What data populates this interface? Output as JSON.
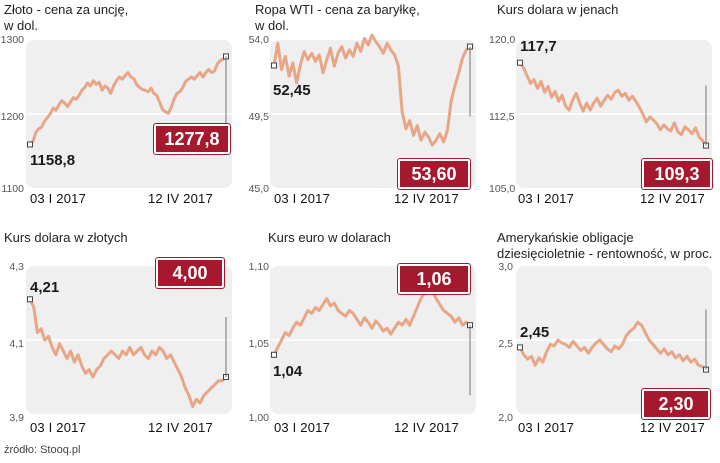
{
  "source": "źródło: Stooq.pl",
  "chart_data": [
    {
      "type": "line",
      "title": "Złoto - cena za uncję,\nw dol.",
      "ylim": [
        1100,
        1300
      ],
      "yticks": [
        "1300",
        "1200",
        "1100"
      ],
      "ytick_values": [
        1300,
        1200,
        1100
      ],
      "x_start": "03 I 2017",
      "x_end": "12 IV 2017",
      "start_label": "1158,8",
      "end_label": "1277,8",
      "series": [
        {
          "values": [
            1158.8,
            1163,
            1175,
            1180,
            1182,
            1190,
            1195,
            1200,
            1208,
            1205,
            1212,
            1218,
            1215,
            1210,
            1216,
            1222,
            1220,
            1225,
            1232,
            1236,
            1242,
            1238,
            1245,
            1240,
            1243,
            1232,
            1238,
            1235,
            1228,
            1238,
            1245,
            1250,
            1247,
            1252,
            1256,
            1250,
            1248,
            1240,
            1236,
            1233,
            1232,
            1230,
            1235,
            1228,
            1225,
            1216,
            1206,
            1203,
            1201,
            1209,
            1220,
            1228,
            1230,
            1236,
            1244,
            1247,
            1250,
            1247,
            1252,
            1256,
            1250,
            1256,
            1260,
            1256,
            1258,
            1268,
            1272,
            1274,
            1277.8
          ]
        }
      ]
    },
    {
      "type": "line",
      "title": "Ropa WTI - cena za baryłkę,\nw dol.",
      "ylim": [
        45,
        54
      ],
      "yticks": [
        "54,0",
        "49,5",
        "45,0"
      ],
      "ytick_values": [
        54,
        49.5,
        45
      ],
      "x_start": "03 I 2017",
      "x_end": "12 IV 2017",
      "start_label": "52,45",
      "end_label": "53,60",
      "series": [
        {
          "values": [
            52.45,
            53.8,
            52.2,
            53.0,
            51.8,
            52.6,
            51.4,
            52.5,
            53.3,
            52.8,
            53.2,
            52.7,
            53.1,
            52.0,
            52.8,
            53.5,
            52.4,
            53.2,
            53.6,
            52.9,
            53.4,
            53.0,
            53.8,
            53.3,
            54.1,
            53.7,
            54.3,
            53.9,
            53.6,
            53.2,
            53.8,
            53.4,
            53.1,
            52.4,
            49.6,
            48.6,
            49.1,
            48.2,
            48.8,
            47.9,
            48.4,
            48.1,
            47.6,
            47.9,
            48.3,
            47.8,
            48.5,
            50.3,
            51.2,
            52.0,
            52.9,
            53.4,
            53.6
          ]
        }
      ]
    },
    {
      "type": "line",
      "title": "Kurs dolara w jenach",
      "ylim": [
        105,
        120
      ],
      "yticks": [
        "120,0",
        "112,5",
        "105,0"
      ],
      "ytick_values": [
        120,
        112.5,
        105
      ],
      "x_start": "03 I 2017",
      "x_end": "12 IV 2017",
      "start_label": "117,7",
      "end_label": "109,3",
      "series": [
        {
          "values": [
            117.7,
            117.2,
            116.4,
            115.6,
            116.0,
            115.1,
            115.8,
            114.7,
            115.3,
            114.2,
            114.8,
            113.8,
            114.4,
            113.3,
            112.9,
            113.9,
            114.6,
            113.6,
            112.8,
            113.6,
            112.9,
            113.6,
            114.1,
            113.3,
            113.9,
            114.4,
            114.0,
            114.7,
            114.9,
            114.3,
            114.6,
            113.9,
            114.3,
            113.8,
            113.2,
            112.5,
            111.7,
            112.2,
            111.9,
            111.5,
            110.9,
            111.4,
            111.0,
            110.8,
            111.6,
            110.7,
            110.4,
            111.2,
            110.9,
            110.5,
            111.1,
            110.2,
            109.8,
            109.3
          ]
        }
      ]
    },
    {
      "type": "line",
      "title": "Kurs dolara w złotych",
      "ylim": [
        3.9,
        4.3
      ],
      "yticks": [
        "4,3",
        "4,1",
        "3,9"
      ],
      "ytick_values": [
        4.3,
        4.1,
        3.9
      ],
      "x_start": "03 I 2017",
      "x_end": "12 IV 2017",
      "start_label": "4,21",
      "end_label": "4,00",
      "series": [
        {
          "values": [
            4.21,
            4.19,
            4.12,
            4.13,
            4.1,
            4.11,
            4.08,
            4.06,
            4.09,
            4.07,
            4.05,
            4.07,
            4.04,
            4.06,
            4.03,
            4.01,
            4.02,
            4.0,
            4.02,
            4.03,
            4.05,
            4.06,
            4.07,
            4.06,
            4.05,
            4.07,
            4.06,
            4.08,
            4.06,
            4.07,
            4.08,
            4.06,
            4.05,
            4.07,
            4.06,
            4.08,
            4.07,
            4.05,
            4.06,
            4.04,
            4.02,
            4.0,
            3.97,
            3.95,
            3.92,
            3.94,
            3.93,
            3.95,
            3.96,
            3.97,
            3.98,
            3.99,
            3.99,
            4.0
          ]
        }
      ]
    },
    {
      "type": "line",
      "title": "Kurs euro w dolarach",
      "ylim": [
        1.0,
        1.1
      ],
      "yticks": [
        "1,10",
        "1,05",
        "1,00"
      ],
      "ytick_values": [
        1.1,
        1.05,
        1.0
      ],
      "x_start": "03 I 2017",
      "x_end": "12 IV 2017",
      "start_label": "1,04",
      "end_label": "1,06",
      "series": [
        {
          "values": [
            1.04,
            1.045,
            1.05,
            1.055,
            1.053,
            1.058,
            1.062,
            1.06,
            1.065,
            1.07,
            1.068,
            1.072,
            1.07,
            1.074,
            1.078,
            1.073,
            1.075,
            1.07,
            1.068,
            1.066,
            1.07,
            1.068,
            1.064,
            1.06,
            1.065,
            1.062,
            1.058,
            1.063,
            1.06,
            1.056,
            1.058,
            1.054,
            1.058,
            1.062,
            1.06,
            1.064,
            1.06,
            1.066,
            1.072,
            1.078,
            1.082,
            1.086,
            1.083,
            1.078,
            1.074,
            1.07,
            1.068,
            1.066,
            1.062,
            1.065,
            1.06,
            1.062,
            1.06
          ]
        }
      ]
    },
    {
      "type": "line",
      "title": "Amerykańskie obligacje\ndziesięcioletnie - rentowność, w proc.",
      "ylim": [
        2.0,
        3.0
      ],
      "yticks": [
        "3,0",
        "2,5",
        "2,0"
      ],
      "ytick_values": [
        3.0,
        2.5,
        2.0
      ],
      "x_start": "03 I 2017",
      "x_end": "12 IV 2017",
      "start_label": "2,45",
      "end_label": "2,30",
      "series": [
        {
          "values": [
            2.45,
            2.4,
            2.37,
            2.39,
            2.33,
            2.38,
            2.35,
            2.42,
            2.47,
            2.46,
            2.5,
            2.48,
            2.47,
            2.45,
            2.49,
            2.46,
            2.43,
            2.45,
            2.41,
            2.45,
            2.48,
            2.5,
            2.47,
            2.44,
            2.42,
            2.46,
            2.44,
            2.47,
            2.53,
            2.56,
            2.58,
            2.62,
            2.6,
            2.55,
            2.5,
            2.47,
            2.44,
            2.41,
            2.44,
            2.4,
            2.42,
            2.38,
            2.4,
            2.36,
            2.39,
            2.35,
            2.37,
            2.33,
            2.32,
            2.3
          ]
        }
      ]
    }
  ]
}
